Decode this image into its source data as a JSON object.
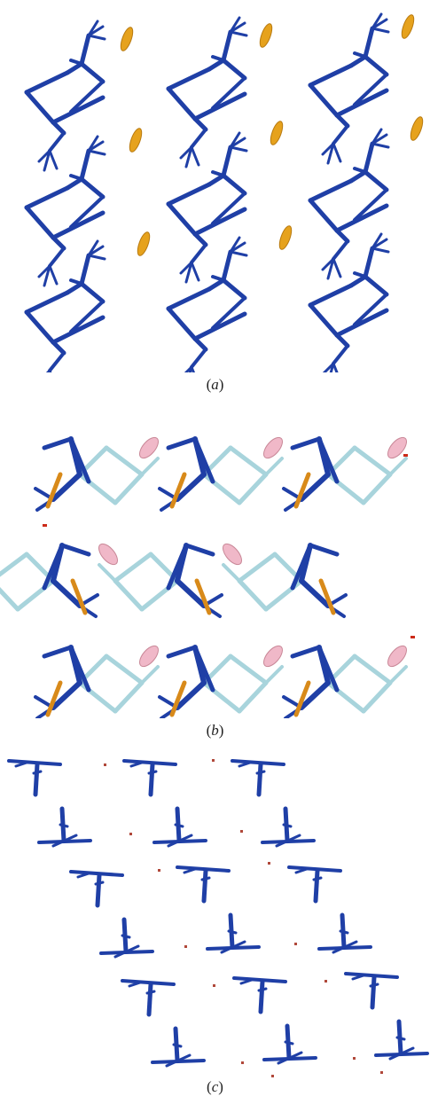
{
  "panels": [
    {
      "id": "a",
      "caption": "a",
      "colors": {
        "molecule": "#1f3fa6",
        "guest": "#e6a21d"
      }
    },
    {
      "id": "b",
      "caption": "b",
      "colors": {
        "molecule": "#1f3fa6",
        "molecule_alt": "#a8d4dc",
        "guest_pink": "#f0b8c8",
        "guest_orange": "#d88a1a",
        "accent_red": "#cc2a18",
        "accent_teal": "#2a9a8a"
      }
    },
    {
      "id": "c",
      "caption": "c",
      "colors": {
        "molecule": "#1f3fa6",
        "dot": "#b0483a"
      }
    }
  ]
}
